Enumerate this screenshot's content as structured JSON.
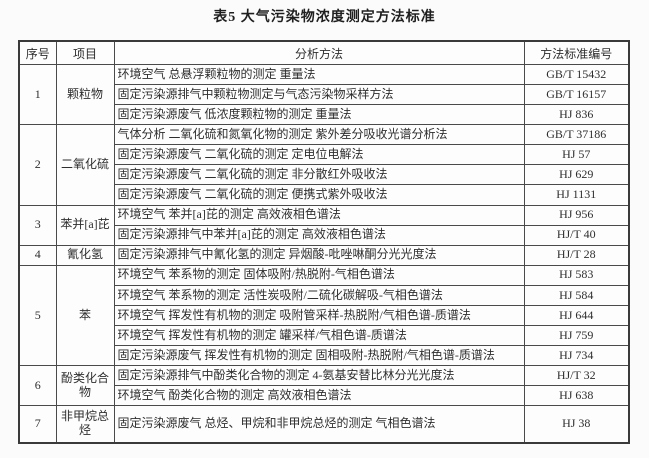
{
  "title": "表5  大气污染物浓度测定方法标准",
  "table": {
    "headers": [
      "序号",
      "项目",
      "分析方法",
      "方法标准编号"
    ],
    "groups": [
      {
        "no": "1",
        "item": "颗粒物",
        "methods": [
          {
            "analysis": "环境空气 总悬浮颗粒物的测定 重量法",
            "standard": "GB/T 15432"
          },
          {
            "analysis": "固定污染源排气中颗粒物测定与气态污染物采样方法",
            "standard": "GB/T 16157"
          },
          {
            "analysis": "固定污染源废气 低浓度颗粒物的测定 重量法",
            "standard": "HJ 836"
          }
        ]
      },
      {
        "no": "2",
        "item": "二氧化硫",
        "methods": [
          {
            "analysis": "气体分析 二氧化硫和氮氧化物的测定 紫外差分吸收光谱分析法",
            "standard": "GB/T 37186"
          },
          {
            "analysis": "固定污染源废气 二氧化硫的测定 定电位电解法",
            "standard": "HJ 57"
          },
          {
            "analysis": "固定污染源废气 二氧化硫的测定 非分散红外吸收法",
            "standard": "HJ 629"
          },
          {
            "analysis": "固定污染源废气 二氧化硫的测定 便携式紫外吸收法",
            "standard": "HJ 1131"
          }
        ]
      },
      {
        "no": "3",
        "item": "苯并[a]芘",
        "methods": [
          {
            "analysis": "环境空气 苯并[a]芘的测定 高效液相色谱法",
            "standard": "HJ 956"
          },
          {
            "analysis": "固定污染源排气中苯并[a]芘的测定 高效液相色谱法",
            "standard": "HJ/T 40"
          }
        ]
      },
      {
        "no": "4",
        "item": "氰化氢",
        "methods": [
          {
            "analysis": "固定污染源排气中氰化氢的测定 异烟酸-吡唑啉酮分光光度法",
            "standard": "HJ/T 28"
          }
        ]
      },
      {
        "no": "5",
        "item": "苯",
        "methods": [
          {
            "analysis": "环境空气 苯系物的测定 固体吸附/热脱附-气相色谱法",
            "standard": "HJ 583"
          },
          {
            "analysis": "环境空气 苯系物的测定 活性炭吸附/二硫化碳解吸-气相色谱法",
            "standard": "HJ 584"
          },
          {
            "analysis": "环境空气 挥发性有机物的测定 吸附管采样-热脱附/气相色谱-质谱法",
            "standard": "HJ 644"
          },
          {
            "analysis": "环境空气 挥发性有机物的测定 罐采样/气相色谱-质谱法",
            "standard": "HJ 759"
          },
          {
            "analysis": "固定污染源废气 挥发性有机物的测定 固相吸附-热脱附/气相色谱-质谱法",
            "standard": "HJ 734"
          }
        ]
      },
      {
        "no": "6",
        "item": "酚类化合物",
        "methods": [
          {
            "analysis": "固定污染源排气中酚类化合物的测定 4-氨基安替比林分光光度法",
            "standard": "HJ/T 32"
          },
          {
            "analysis": "环境空气 酚类化合物的测定 高效液相色谱法",
            "standard": "HJ 638"
          }
        ]
      },
      {
        "no": "7",
        "item": "非甲烷总烃",
        "methods": [
          {
            "analysis": "固定污染源废气 总烃、甲烷和非甲烷总烃的测定 气相色谱法",
            "standard": "HJ 38"
          }
        ]
      }
    ]
  },
  "colors": {
    "background": "#fbfbfb",
    "table_background": "#fdfdfd",
    "border": "#4a4a4a",
    "text": "#2e2e2e"
  }
}
